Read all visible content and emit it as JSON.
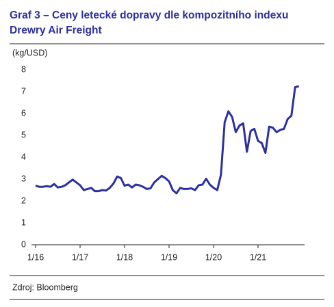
{
  "chart_data": {
    "type": "line",
    "title": "Graf 3 – Ceny letecké dopravy dle kompozitního indexu Drewry Air Freight",
    "y_label": "(kg/USD)",
    "source": "Zdroj: Bloomberg",
    "categories": [
      "1/16",
      null,
      null,
      null,
      null,
      null,
      null,
      null,
      null,
      null,
      null,
      null,
      "1/17",
      null,
      null,
      null,
      null,
      null,
      null,
      null,
      null,
      null,
      null,
      null,
      "1/18",
      null,
      null,
      null,
      null,
      null,
      null,
      null,
      null,
      null,
      null,
      null,
      "1/19",
      null,
      null,
      null,
      null,
      null,
      null,
      null,
      null,
      null,
      null,
      null,
      "1/20",
      null,
      null,
      null,
      null,
      null,
      null,
      null,
      null,
      null,
      null,
      null,
      "1/21",
      null,
      null,
      null,
      null,
      null,
      null,
      null,
      null,
      null,
      null,
      null
    ],
    "series": [
      {
        "name": "Drewry Air Freight",
        "color": "#2b2fa0",
        "values": [
          2.7,
          2.65,
          2.65,
          2.68,
          2.65,
          2.78,
          2.62,
          2.65,
          2.72,
          2.85,
          2.98,
          2.85,
          2.72,
          2.5,
          2.55,
          2.6,
          2.45,
          2.45,
          2.5,
          2.48,
          2.6,
          2.8,
          3.12,
          3.05,
          2.7,
          2.75,
          2.62,
          2.75,
          2.72,
          2.65,
          2.55,
          2.58,
          2.85,
          3.0,
          3.15,
          3.05,
          2.9,
          2.5,
          2.35,
          2.6,
          2.55,
          2.55,
          2.58,
          2.5,
          2.72,
          2.75,
          3.02,
          2.75,
          2.6,
          2.5,
          3.2,
          5.6,
          6.1,
          5.85,
          5.15,
          5.45,
          5.55,
          4.25,
          5.2,
          5.3,
          4.75,
          4.65,
          4.2,
          5.4,
          5.35,
          5.15,
          5.25,
          5.3,
          5.75,
          5.9,
          7.2,
          7.25
        ]
      }
    ],
    "ylim": [
      0,
      8
    ],
    "yticks": [
      0,
      1,
      2,
      3,
      4,
      5,
      6,
      7,
      8
    ],
    "grid": false
  }
}
